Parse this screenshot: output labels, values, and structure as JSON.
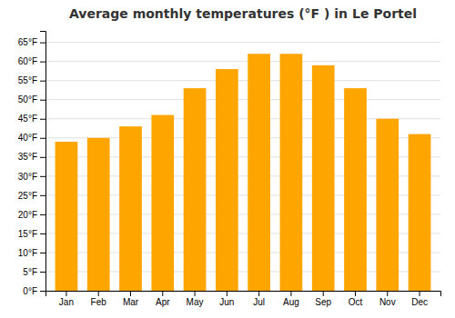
{
  "chart_data": {
    "type": "bar",
    "title": "Average monthly temperatures (°F ) in Le Portel",
    "categories": [
      "Jan",
      "Feb",
      "Mar",
      "Apr",
      "May",
      "Jun",
      "Jul",
      "Aug",
      "Sep",
      "Oct",
      "Nov",
      "Dec"
    ],
    "values": [
      39,
      40,
      43,
      46,
      53,
      58,
      62,
      62,
      59,
      53,
      45,
      41
    ],
    "color": "#FFA500",
    "ylim": [
      0,
      68
    ],
    "yticks": [
      {
        "value": 0,
        "label": "0°F"
      },
      {
        "value": 5,
        "label": "5°F"
      },
      {
        "value": 10,
        "label": "10°F"
      },
      {
        "value": 15,
        "label": "15°F"
      },
      {
        "value": 20,
        "label": "20°F"
      },
      {
        "value": 25,
        "label": "25°F"
      },
      {
        "value": 30,
        "label": "30°F"
      },
      {
        "value": 35,
        "label": "35°F"
      },
      {
        "value": 40,
        "label": "40°F"
      },
      {
        "value": 45,
        "label": "45°F"
      },
      {
        "value": 50,
        "label": "50°F"
      },
      {
        "value": 55,
        "label": "55°F"
      },
      {
        "value": 60,
        "label": "60°F"
      },
      {
        "value": 65,
        "label": "65°F"
      }
    ],
    "grid": true
  }
}
